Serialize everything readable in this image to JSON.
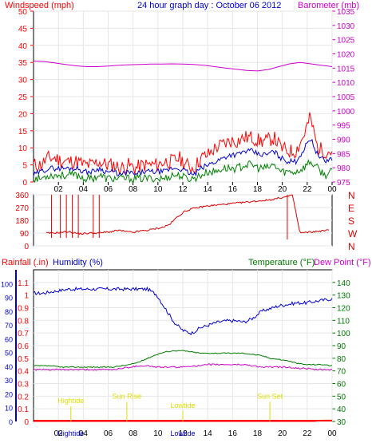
{
  "header": {
    "title": "24 hour graph day : October 06 2012",
    "left_label": "Windspeed (mph)",
    "right_label": "Barometer (mb)"
  },
  "colors": {
    "wind": "#ff0000",
    "wind_avg": "#0000cc",
    "wind_low": "#008000",
    "barometer": "#cc00cc",
    "direction": "#dd0000",
    "humidity": "#0000cc",
    "temperature": "#007700",
    "dewpoint": "#cc00cc",
    "rain": "#ff0000",
    "tide": "#dddd00",
    "axis_left": "#ff0000",
    "axis_humidity": "#0000cc",
    "title": "#0000cc"
  },
  "bottom_panel": {
    "rain_label": "Rainfall (.in)",
    "humidity_label": "Humidity (%)",
    "temperature_label": "Temperature (°F)",
    "dewpoint_label": "Dew Point (°F)"
  },
  "chart_data": [
    {
      "type": "line",
      "x_ticks": [
        "02",
        "04",
        "06",
        "08",
        "10",
        "12",
        "14",
        "16",
        "18",
        "20",
        "22",
        "00"
      ],
      "y_ticks": [
        0,
        5,
        10,
        15,
        20,
        25,
        30,
        35,
        40,
        45,
        50
      ],
      "y2_ticks": [
        975,
        980,
        985,
        990,
        995,
        1000,
        1005,
        1010,
        1015,
        1020,
        1025,
        1030,
        1035
      ],
      "ylim": [
        0,
        50
      ],
      "y2lim": [
        975,
        1035
      ],
      "series": [
        {
          "name": "Windspeed (mph)",
          "kind": "gust",
          "values": [
            5,
            5,
            7,
            7,
            6,
            6,
            6,
            5,
            5,
            6,
            5,
            5,
            4,
            5,
            4,
            5,
            5,
            5,
            6,
            6,
            7,
            5,
            4,
            7,
            8,
            10,
            11,
            12,
            12,
            13,
            13,
            12,
            12,
            13,
            10,
            9,
            9,
            13,
            19,
            10,
            9,
            9
          ]
        },
        {
          "name": "Windspeed (mph)",
          "kind": "avg",
          "values": [
            2,
            3,
            4,
            4,
            4,
            4,
            4,
            3,
            3,
            4,
            3,
            3,
            2,
            3,
            2,
            3,
            3,
            3,
            3,
            4,
            4,
            3,
            2,
            4,
            5,
            6,
            7,
            8,
            8,
            9,
            9,
            8,
            8,
            9,
            7,
            6,
            6,
            9,
            13,
            8,
            6,
            7
          ]
        },
        {
          "name": "Windspeed (mph)",
          "kind": "low",
          "values": [
            1,
            1,
            2,
            2,
            2,
            2,
            2,
            1,
            1,
            2,
            1,
            1,
            1,
            1,
            1,
            1,
            1,
            1,
            1,
            2,
            2,
            1,
            1,
            2,
            3,
            3,
            4,
            4,
            4,
            5,
            5,
            4,
            4,
            5,
            3,
            3,
            3,
            4,
            6,
            4,
            2,
            3
          ]
        },
        {
          "name": "Barometer (mb)",
          "kind": "baro",
          "values": [
            1017.5,
            1017.3,
            1016.8,
            1016.3,
            1015.8,
            1015.5,
            1015.5,
            1015.7,
            1016,
            1016.2,
            1016.3,
            1016.4,
            1016.4,
            1016.5,
            1016.4,
            1016.3,
            1016,
            1015.5,
            1015,
            1014.6,
            1014.2,
            1014,
            1014.5,
            1015.5,
            1016.5,
            1017,
            1016.5,
            1016,
            1015.5
          ]
        }
      ]
    },
    {
      "type": "line",
      "y_ticks": [
        0,
        90,
        180,
        270,
        360
      ],
      "y2_ticks": [
        "N",
        "W",
        "S",
        "E",
        "N"
      ],
      "ylim": [
        0,
        360
      ],
      "series": [
        {
          "name": "Wind Direction",
          "values": [
            90,
            90,
            95,
            100,
            90,
            85,
            90,
            90,
            95,
            100,
            110,
            100,
            95,
            105,
            110,
            120,
            130,
            150,
            200,
            240,
            260,
            270,
            280,
            285,
            290,
            295,
            300,
            305,
            310,
            315,
            320,
            325,
            335,
            345,
            355,
            90,
            95,
            100,
            105,
            110
          ]
        }
      ]
    },
    {
      "type": "line",
      "x_ticks": [
        "02",
        "04",
        "06",
        "08",
        "10",
        "12",
        "14",
        "16",
        "18",
        "20",
        "22",
        "00"
      ],
      "y_ticks": [
        0,
        0.1,
        0.2,
        0.3,
        0.4,
        0.5,
        0.6,
        0.7,
        0.8,
        0.9,
        1,
        1.1
      ],
      "y_humidity_ticks": [
        0,
        10,
        20,
        30,
        40,
        50,
        60,
        70,
        80,
        90,
        100
      ],
      "y2_ticks": [
        30,
        40,
        50,
        60,
        70,
        80,
        90,
        100,
        110,
        120,
        130,
        140
      ],
      "ylim": [
        0,
        1.2
      ],
      "y2lim": [
        30,
        150
      ],
      "series": [
        {
          "name": "Humidity (%)",
          "values": [
            93,
            93,
            94,
            95,
            96,
            96,
            96,
            96,
            96,
            96,
            96,
            96,
            96,
            96,
            92,
            82,
            72,
            66,
            64,
            68,
            70,
            72,
            73,
            73,
            72,
            75,
            80,
            82,
            84,
            85,
            86,
            86,
            87,
            88,
            89
          ]
        },
        {
          "name": "Temperature (°F)",
          "values": [
            74,
            74,
            74,
            73,
            73,
            73,
            73,
            73,
            73,
            73,
            74,
            75,
            77,
            80,
            83,
            85,
            86,
            86,
            85,
            84,
            84,
            84,
            84,
            84,
            84,
            83,
            82,
            80,
            79,
            78,
            76,
            75,
            75,
            75,
            74
          ]
        },
        {
          "name": "Dew Point (°F)",
          "values": [
            71,
            71,
            71,
            71,
            71,
            71,
            71,
            71,
            71,
            71,
            72,
            73,
            74,
            74,
            73,
            73,
            73,
            73,
            74,
            74,
            75,
            75,
            75,
            75,
            75,
            74,
            73,
            73,
            73,
            73,
            72,
            72,
            71,
            71,
            71
          ]
        },
        {
          "name": "Rainfall (.in)",
          "values": [
            0,
            0,
            0,
            0,
            0,
            0,
            0,
            0,
            0,
            0,
            0,
            0,
            0,
            0,
            0,
            0,
            0,
            0,
            0,
            0,
            0,
            0,
            0,
            0,
            0,
            0,
            0,
            0,
            0,
            0,
            0,
            0,
            0,
            0.01,
            0.01
          ]
        }
      ],
      "annotations": [
        {
          "label": "Hightide",
          "x": "03:00",
          "y_frac": 0.12
        },
        {
          "label": "Sun Rise",
          "x": "07:30",
          "y_frac": 0.15
        },
        {
          "label": "Lowtide",
          "x": "12:00",
          "y_frac": 0.09
        },
        {
          "label": "Sun Set",
          "x": "19:00",
          "y_frac": 0.15
        }
      ],
      "x_annotation_labels": [
        {
          "label": "Hightide",
          "x": "03:00"
        },
        {
          "label": "Lowtide",
          "x": "12:00"
        }
      ]
    }
  ]
}
